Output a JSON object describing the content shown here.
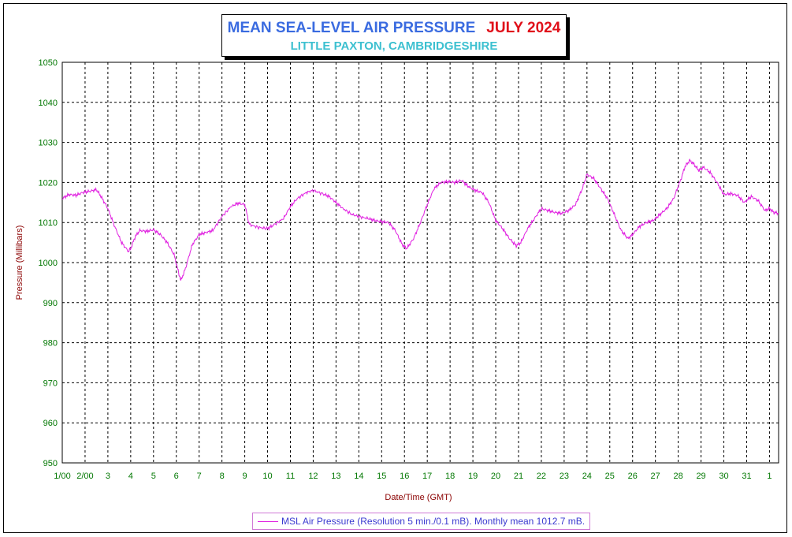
{
  "title": {
    "main": "MEAN SEA-LEVEL AIR PRESSURE",
    "month": "JULY 2024",
    "subtitle": "LITTLE PAXTON, CAMBRIDGESHIRE"
  },
  "colors": {
    "title_main": "#3a6be0",
    "title_month": "#e0101a",
    "subtitle": "#3cc0d0",
    "tick_labels": "#007700",
    "axis_labels": "#8b0000",
    "series": "#e020e0",
    "grid": "#000000"
  },
  "legend": {
    "text": "MSL Air Pressure (Resolution 5 min./0.1 mB). Monthly mean 1012.7 mB."
  },
  "chart_data": {
    "type": "line",
    "title": "MEAN SEA-LEVEL AIR PRESSURE",
    "subtitle": "LITTLE PAXTON, CAMBRIDGESHIRE",
    "xlabel": "Date/Time (GMT)",
    "ylabel": "Pressure (Millibars)",
    "xlim": [
      1,
      32.4
    ],
    "ylim": [
      950,
      1050
    ],
    "yticks": [
      950,
      960,
      970,
      980,
      990,
      1000,
      1010,
      1020,
      1030,
      1040,
      1050
    ],
    "xticks": [
      {
        "x": 1,
        "label": "1/00"
      },
      {
        "x": 2,
        "label": "2/00"
      },
      {
        "x": 3,
        "label": "3"
      },
      {
        "x": 4,
        "label": "4"
      },
      {
        "x": 5,
        "label": "5"
      },
      {
        "x": 6,
        "label": "6"
      },
      {
        "x": 7,
        "label": "7"
      },
      {
        "x": 8,
        "label": "8"
      },
      {
        "x": 9,
        "label": "9"
      },
      {
        "x": 10,
        "label": "10"
      },
      {
        "x": 11,
        "label": "11"
      },
      {
        "x": 12,
        "label": "12"
      },
      {
        "x": 13,
        "label": "13"
      },
      {
        "x": 14,
        "label": "14"
      },
      {
        "x": 15,
        "label": "15"
      },
      {
        "x": 16,
        "label": "16"
      },
      {
        "x": 17,
        "label": "17"
      },
      {
        "x": 18,
        "label": "18"
      },
      {
        "x": 19,
        "label": "19"
      },
      {
        "x": 20,
        "label": "20"
      },
      {
        "x": 21,
        "label": "21"
      },
      {
        "x": 22,
        "label": "22"
      },
      {
        "x": 23,
        "label": "23"
      },
      {
        "x": 24,
        "label": "24"
      },
      {
        "x": 25,
        "label": "25"
      },
      {
        "x": 26,
        "label": "26"
      },
      {
        "x": 27,
        "label": "27"
      },
      {
        "x": 28,
        "label": "28"
      },
      {
        "x": 29,
        "label": "29"
      },
      {
        "x": 30,
        "label": "30"
      },
      {
        "x": 31,
        "label": "31"
      },
      {
        "x": 32,
        "label": "1"
      }
    ],
    "grid": true,
    "legend_position": "bottom",
    "series": [
      {
        "name": "MSL Air Pressure (Resolution 5 min./0.1 mB). Monthly mean 1012.7 mB.",
        "x": [
          1.0,
          1.3,
          1.6,
          1.9,
          2.2,
          2.5,
          2.7,
          3.0,
          3.3,
          3.6,
          3.9,
          4.0,
          4.2,
          4.4,
          4.7,
          5.0,
          5.3,
          5.6,
          5.9,
          6.1,
          6.2,
          6.4,
          6.7,
          7.0,
          7.3,
          7.6,
          8.0,
          8.4,
          8.7,
          9.0,
          9.2,
          9.6,
          10.0,
          10.3,
          10.7,
          11.0,
          11.3,
          11.7,
          12.0,
          12.4,
          12.7,
          13.0,
          13.3,
          13.7,
          14.0,
          14.4,
          14.7,
          15.0,
          15.3,
          15.6,
          15.9,
          16.1,
          16.4,
          16.7,
          17.0,
          17.3,
          17.6,
          17.9,
          18.2,
          18.5,
          18.8,
          19.1,
          19.4,
          19.7,
          20.0,
          20.3,
          20.6,
          20.9,
          21.1,
          21.4,
          21.7,
          22.0,
          22.3,
          22.6,
          22.9,
          23.2,
          23.5,
          23.8,
          24.0,
          24.3,
          24.6,
          24.9,
          25.2,
          25.5,
          25.8,
          26.0,
          26.3,
          26.6,
          26.9,
          27.2,
          27.5,
          27.8,
          28.1,
          28.3,
          28.5,
          28.7,
          28.9,
          29.1,
          29.4,
          29.7,
          30.0,
          30.3,
          30.6,
          30.9,
          31.2,
          31.5,
          31.8,
          32.0,
          32.2,
          32.4
        ],
        "y": [
          1016.0,
          1017.0,
          1016.8,
          1017.5,
          1017.8,
          1018.2,
          1016.5,
          1013.5,
          1009.0,
          1005.0,
          1002.8,
          1003.5,
          1006.5,
          1008.0,
          1007.8,
          1008.2,
          1007.0,
          1005.0,
          1002.0,
          997.5,
          995.5,
          998.5,
          1004.5,
          1007.0,
          1007.5,
          1008.0,
          1011.5,
          1014.0,
          1014.8,
          1014.5,
          1009.5,
          1008.8,
          1008.5,
          1009.5,
          1011.0,
          1014.0,
          1016.0,
          1017.5,
          1018.0,
          1017.2,
          1016.5,
          1015.0,
          1013.5,
          1012.0,
          1011.5,
          1011.0,
          1010.5,
          1010.2,
          1010.0,
          1008.0,
          1004.5,
          1003.5,
          1006.0,
          1010.0,
          1014.5,
          1018.5,
          1020.0,
          1020.2,
          1020.0,
          1020.5,
          1019.0,
          1018.0,
          1017.5,
          1015.0,
          1010.5,
          1008.5,
          1006.0,
          1004.2,
          1005.0,
          1008.5,
          1011.0,
          1013.5,
          1013.0,
          1012.5,
          1012.3,
          1013.0,
          1014.5,
          1018.5,
          1022.0,
          1021.0,
          1018.5,
          1016.0,
          1012.0,
          1008.0,
          1006.0,
          1007.0,
          1009.0,
          1010.0,
          1010.5,
          1012.0,
          1013.5,
          1016.0,
          1020.5,
          1024.0,
          1025.5,
          1024.5,
          1023.0,
          1023.8,
          1022.5,
          1020.0,
          1017.0,
          1017.2,
          1016.8,
          1015.0,
          1016.5,
          1015.5,
          1013.0,
          1013.5,
          1012.5,
          1012.3
        ]
      }
    ]
  }
}
